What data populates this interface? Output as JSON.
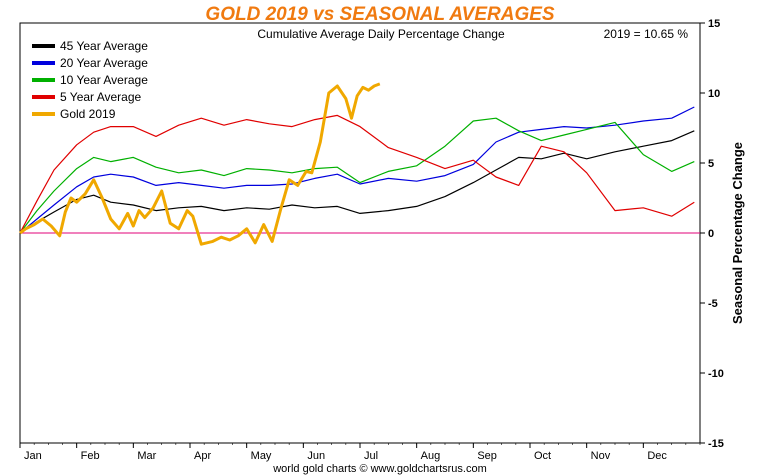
{
  "chart_data": {
    "type": "line",
    "title": "GOLD 2019 vs SEASONAL AVERAGES",
    "subtitle": "Cumulative Average Daily Percentage Change",
    "annotation": "2019 = 10.65 %",
    "ylabel": "Seasonal Percentage Change",
    "footer": "world gold charts © www.goldchartsrus.com",
    "ylim": [
      -15,
      15
    ],
    "yticks": [
      15,
      10,
      5,
      0,
      -5,
      -10,
      -15
    ],
    "xlim": [
      0,
      12
    ],
    "x_unit": "months since Jan 1",
    "months": [
      "Jan",
      "Feb",
      "Mar",
      "Apr",
      "May",
      "Jun",
      "Jul",
      "Aug",
      "Sep",
      "Oct",
      "Nov",
      "Dec"
    ],
    "zero_line_color": "#e0007a",
    "legend_position": "top-left",
    "series": [
      {
        "name": "45 Year Average",
        "color": "#000000",
        "x": [
          0,
          0.3,
          0.6,
          1.0,
          1.3,
          1.6,
          2.0,
          2.4,
          2.8,
          3.2,
          3.6,
          4.0,
          4.4,
          4.8,
          5.2,
          5.6,
          6.0,
          6.5,
          7.0,
          7.5,
          8.0,
          8.4,
          8.8,
          9.2,
          9.6,
          10.0,
          10.5,
          11.0,
          11.5,
          11.9
        ],
        "values": [
          0.0,
          0.8,
          1.5,
          2.4,
          2.7,
          2.2,
          2.0,
          1.6,
          1.8,
          1.9,
          1.6,
          1.8,
          1.7,
          2.0,
          1.8,
          1.9,
          1.4,
          1.6,
          1.9,
          2.6,
          3.6,
          4.5,
          5.4,
          5.3,
          5.7,
          5.3,
          5.8,
          6.2,
          6.6,
          7.3
        ]
      },
      {
        "name": "20 Year Average",
        "color": "#0000dd",
        "x": [
          0,
          0.3,
          0.6,
          1.0,
          1.3,
          1.6,
          2.0,
          2.4,
          2.8,
          3.2,
          3.6,
          4.0,
          4.4,
          4.8,
          5.2,
          5.6,
          6.0,
          6.5,
          7.0,
          7.5,
          8.0,
          8.4,
          8.8,
          9.2,
          9.6,
          10.0,
          10.5,
          11.0,
          11.5,
          11.9
        ],
        "values": [
          0.0,
          1.0,
          2.0,
          3.3,
          4.0,
          4.2,
          4.0,
          3.4,
          3.6,
          3.4,
          3.2,
          3.4,
          3.4,
          3.5,
          3.9,
          4.2,
          3.5,
          3.9,
          3.7,
          4.1,
          4.9,
          6.5,
          7.2,
          7.4,
          7.6,
          7.5,
          7.7,
          8.0,
          8.2,
          9.0
        ]
      },
      {
        "name": "10 Year Average",
        "color": "#00b000",
        "x": [
          0,
          0.3,
          0.6,
          1.0,
          1.3,
          1.6,
          2.0,
          2.4,
          2.8,
          3.2,
          3.6,
          4.0,
          4.4,
          4.8,
          5.2,
          5.6,
          6.0,
          6.5,
          7.0,
          7.5,
          8.0,
          8.4,
          8.8,
          9.2,
          9.6,
          10.0,
          10.5,
          11.0,
          11.5,
          11.9
        ],
        "values": [
          0.0,
          1.6,
          3.0,
          4.6,
          5.4,
          5.1,
          5.4,
          4.7,
          4.3,
          4.5,
          4.1,
          4.6,
          4.5,
          4.3,
          4.6,
          4.7,
          3.6,
          4.4,
          4.8,
          6.2,
          8.0,
          8.2,
          7.3,
          6.6,
          7.0,
          7.4,
          7.9,
          5.6,
          4.4,
          5.1
        ]
      },
      {
        "name": "5 Year Average",
        "color": "#e00000",
        "x": [
          0,
          0.3,
          0.6,
          1.0,
          1.3,
          1.6,
          2.0,
          2.4,
          2.8,
          3.2,
          3.6,
          4.0,
          4.4,
          4.8,
          5.2,
          5.6,
          6.0,
          6.5,
          7.0,
          7.5,
          8.0,
          8.4,
          8.8,
          9.2,
          9.6,
          10.0,
          10.5,
          11.0,
          11.5,
          11.9
        ],
        "values": [
          0.0,
          2.3,
          4.5,
          6.3,
          7.2,
          7.6,
          7.6,
          6.9,
          7.7,
          8.2,
          7.7,
          8.1,
          7.8,
          7.6,
          8.1,
          8.4,
          7.6,
          6.1,
          5.4,
          4.6,
          5.2,
          4.0,
          3.4,
          6.2,
          5.8,
          4.3,
          1.6,
          1.8,
          1.2,
          2.2
        ]
      },
      {
        "name": "Gold 2019",
        "color": "#f0a800",
        "x": [
          0,
          0.1,
          0.25,
          0.4,
          0.55,
          0.7,
          0.8,
          0.9,
          1.0,
          1.15,
          1.3,
          1.45,
          1.6,
          1.75,
          1.9,
          2.0,
          2.1,
          2.2,
          2.35,
          2.5,
          2.65,
          2.8,
          2.95,
          3.05,
          3.2,
          3.4,
          3.55,
          3.7,
          3.85,
          4.0,
          4.15,
          4.3,
          4.45,
          4.6,
          4.75,
          4.9,
          5.05,
          5.15,
          5.3,
          5.45,
          5.6,
          5.75,
          5.85,
          5.95,
          6.05,
          6.15,
          6.25,
          6.35
        ],
        "values": [
          0.0,
          0.3,
          0.6,
          1.0,
          0.5,
          -0.2,
          1.5,
          2.5,
          2.2,
          2.8,
          3.8,
          2.5,
          1.0,
          0.3,
          1.4,
          0.5,
          1.6,
          1.1,
          1.8,
          3.0,
          0.7,
          0.3,
          1.6,
          1.2,
          -0.8,
          -0.6,
          -0.3,
          -0.5,
          -0.2,
          0.3,
          -0.7,
          0.6,
          -0.6,
          1.7,
          3.8,
          3.4,
          4.4,
          4.3,
          6.5,
          10.0,
          10.5,
          9.6,
          8.2,
          9.8,
          10.4,
          10.2,
          10.5,
          10.65
        ]
      }
    ]
  }
}
